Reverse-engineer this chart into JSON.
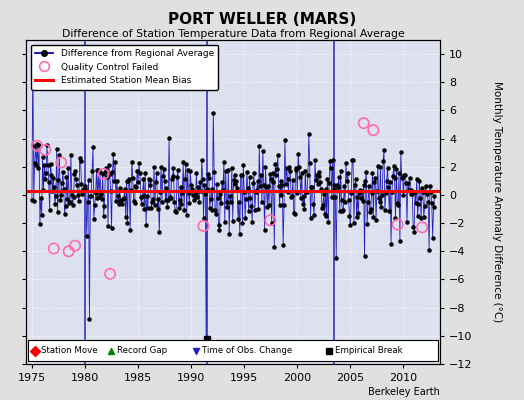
{
  "title": "PORT WELLER (MARS)",
  "subtitle": "Difference of Station Temperature Data from Regional Average",
  "ylabel": "Monthly Temperature Anomaly Difference (°C)",
  "berkeley_earth": "Berkeley Earth",
  "xlim": [
    1974.5,
    2013.5
  ],
  "ylim": [
    -12,
    11
  ],
  "yticks": [
    -12,
    -10,
    -8,
    -6,
    -4,
    -2,
    0,
    2,
    4,
    6,
    8,
    10
  ],
  "xticks": [
    1975,
    1980,
    1985,
    1990,
    1995,
    2000,
    2005,
    2010
  ],
  "bg_color": "#e0e0e0",
  "plot_bg_color": "#dde0ee",
  "grid_color": "white",
  "line_color": "#2222bb",
  "dot_color": "black",
  "bias_color": "red",
  "bias_value": 0.3,
  "time_of_obs_changes": [
    1980.0,
    1991.5,
    2003.5
  ],
  "empirical_break_x": 1991.5,
  "empirical_break_y": -10.2,
  "qc_color": "#ff69b4",
  "legend1_label": "Difference from Regional Average",
  "legend2_label": "Quality Control Failed",
  "legend3_label": "Estimated Station Mean Bias",
  "bot_label1": "Station Move",
  "bot_label2": "Record Gap",
  "bot_label3": "Time of Obs. Change",
  "bot_label4": "Empirical Break"
}
